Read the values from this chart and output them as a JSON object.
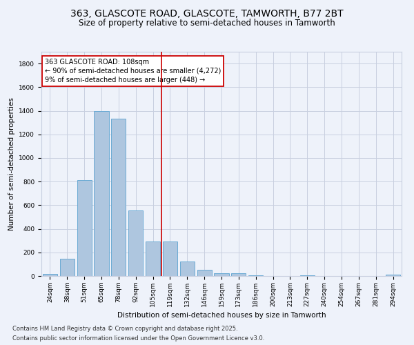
{
  "title": "363, GLASCOTE ROAD, GLASCOTE, TAMWORTH, B77 2BT",
  "subtitle": "Size of property relative to semi-detached houses in Tamworth",
  "xlabel": "Distribution of semi-detached houses by size in Tamworth",
  "ylabel": "Number of semi-detached properties",
  "categories": [
    "24sqm",
    "38sqm",
    "51sqm",
    "65sqm",
    "78sqm",
    "92sqm",
    "105sqm",
    "119sqm",
    "132sqm",
    "146sqm",
    "159sqm",
    "173sqm",
    "186sqm",
    "200sqm",
    "213sqm",
    "227sqm",
    "240sqm",
    "254sqm",
    "267sqm",
    "281sqm",
    "294sqm"
  ],
  "values": [
    20,
    145,
    810,
    1400,
    1335,
    555,
    290,
    290,
    120,
    50,
    25,
    25,
    5,
    0,
    0,
    5,
    0,
    0,
    0,
    0,
    10
  ],
  "bar_color": "#aec6df",
  "bar_edge_color": "#6aaad4",
  "vline_color": "#cc0000",
  "annotation_line1": "363 GLASCOTE ROAD: 108sqm",
  "annotation_line2": "← 90% of semi-detached houses are smaller (4,272)",
  "annotation_line3": "9% of semi-detached houses are larger (448) →",
  "annotation_box_color": "#ffffff",
  "annotation_box_edge": "#cc0000",
  "ylim": [
    0,
    1900
  ],
  "yticks": [
    0,
    200,
    400,
    600,
    800,
    1000,
    1200,
    1400,
    1600,
    1800
  ],
  "background_color": "#eef2fa",
  "grid_color": "#c8cfe0",
  "footer_line1": "Contains HM Land Registry data © Crown copyright and database right 2025.",
  "footer_line2": "Contains public sector information licensed under the Open Government Licence v3.0.",
  "title_fontsize": 10,
  "subtitle_fontsize": 8.5,
  "axis_label_fontsize": 7.5,
  "tick_fontsize": 6.5,
  "annotation_fontsize": 7,
  "footer_fontsize": 6
}
